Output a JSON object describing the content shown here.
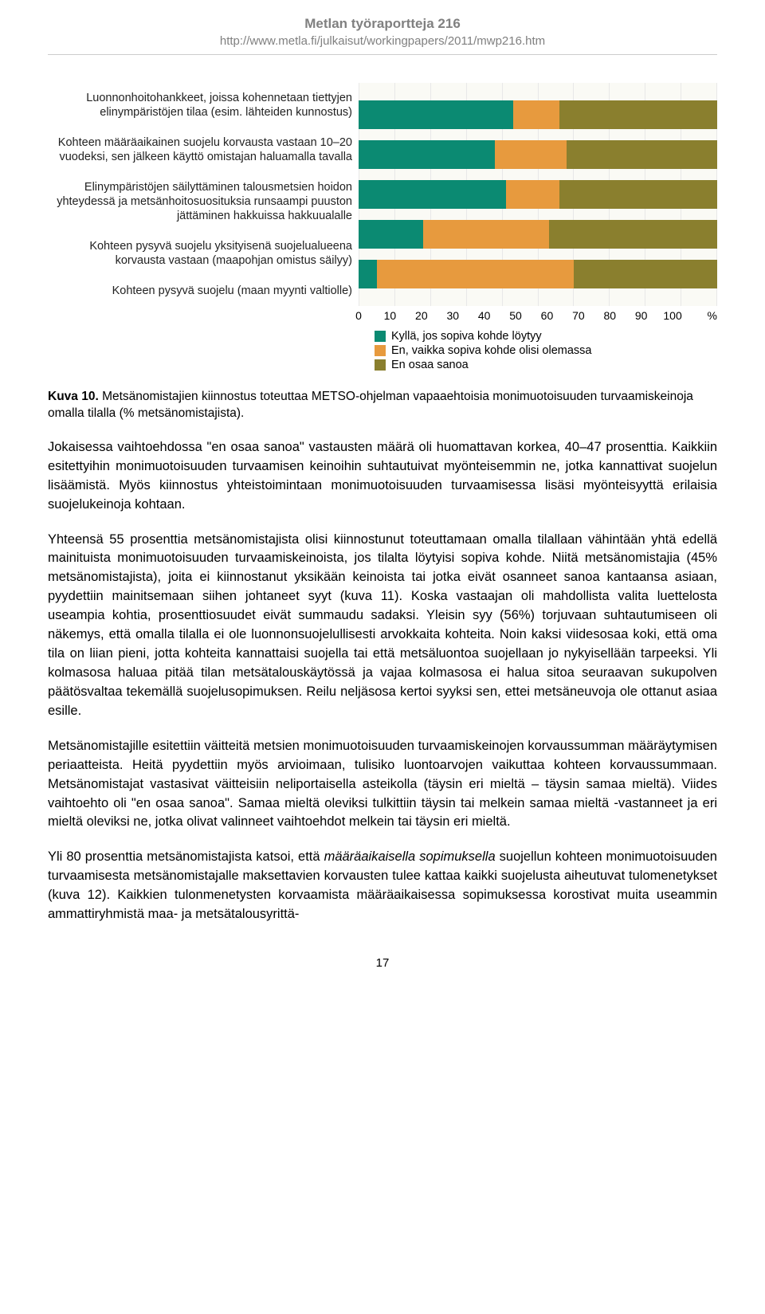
{
  "header": {
    "title": "Metlan työraportteja 216",
    "url": "http://www.metla.fi/julkaisut/workingpapers/2011/mwp216.htm"
  },
  "chart": {
    "type": "stacked-horizontal-bar",
    "plot_bg": "#fafaf5",
    "grid_color": "#e8e8e8",
    "xlim": [
      0,
      100
    ],
    "xtick_step": 10,
    "axis_unit": "%",
    "colors": {
      "yes": "#0b8a72",
      "no": "#e79a3e",
      "dunno": "#8a7f2e"
    },
    "categories": [
      {
        "label": "Luonnonhoitohankkeet, joissa kohennetaan tiettyjen elinympäristöjen tilaa (esim. lähteiden kunnostus)",
        "values": [
          43,
          13,
          44
        ]
      },
      {
        "label": "Kohteen määräaikainen suojelu korvausta vastaan 10–20 vuodeksi, sen jälkeen käyttö omistajan haluamalla tavalla",
        "values": [
          38,
          20,
          42
        ]
      },
      {
        "label": "Elinympäristöjen säilyttäminen talousmetsien hoidon yhteydessä ja metsänhoitosuosituksia runsaampi puuston jättäminen hakkuissa hakkuualalle",
        "values": [
          41,
          15,
          44
        ]
      },
      {
        "label": "Kohteen pysyvä suojelu yksityisenä suojelualueena korvausta vastaan (maapohjan omistus säilyy)",
        "values": [
          18,
          35,
          47
        ]
      },
      {
        "label": "Kohteen pysyvä suojelu (maan myynti valtiolle)",
        "values": [
          5,
          55,
          40
        ]
      }
    ],
    "legend": [
      {
        "key": "yes",
        "label": "Kyllä, jos sopiva kohde löytyy"
      },
      {
        "key": "no",
        "label": "En, vaikka sopiva kohde olisi olemassa"
      },
      {
        "key": "dunno",
        "label": "En osaa sanoa"
      }
    ],
    "label_fontsize": 14.5,
    "axis_fontsize": 14
  },
  "caption": {
    "lead": "Kuva 10.",
    "text": " Metsänomistajien kiinnostus toteuttaa METSO-ohjelman vapaaehtoisia monimuotoisuuden turvaamiskeinoja omalla tilalla (% metsänomistajista)."
  },
  "paragraphs": {
    "p1": "Jokaisessa vaihtoehdossa \"en osaa sanoa\" vastausten määrä oli huomattavan korkea, 40–47 pro­senttia. Kaikkiin esitettyihin monimuotoisuuden turvaamisen keinoihin suhtautuivat myöntei­semmin ne, jotka kannattivat suojelun lisäämistä. Myös kiinnostus yhteistoimintaan monimuotoi­suuden turvaamisessa lisäsi myönteisyyttä erilaisia suojelukeinoja kohtaan.",
    "p2": "Yhteensä 55 prosenttia metsänomistajista olisi kiinnostunut toteuttamaan omalla tilallaan vähin­tään yhtä edellä mainituista monimuotoisuuden turvaamiskeinoista, jos tilalta löytyisi sopiva koh­de. Niitä metsänomistajia (45% metsänomistajista), joita ei kiinnostanut yksikään keinoista tai jotka eivät osanneet sanoa kantaansa asiaan, pyydettiin mainitsemaan siihen johtaneet syyt (kuva 11). Koska vastaajan oli mahdollista valita luettelosta useampia kohtia, prosenttiosuudet eivät summaudu sadaksi. Yleisin syy (56%) torjuvaan suhtautumiseen oli näkemys, että omalla tilalla ei ole luonnonsuojelullisesti arvokkaita kohteita. Noin kaksi viidesosaa koki, että oma tila on liian pieni, jotta kohteita kannattaisi suojella tai että metsäluontoa suojellaan jo nykyisellään tarpeeksi. Yli kolmasosa haluaa pitää tilan metsätalouskäytössä ja vajaa kolmasosa ei halua sitoa seuraavan sukupolven päätösvaltaa tekemällä suojelusopimuksen. Reilu neljäsosa kertoi syyksi sen, ettei metsäneuvoja ole ottanut asiaa esille.",
    "p3": "Metsänomistajille esitettiin väitteitä metsien monimuotoisuuden turvaamiskeinojen korvaussum­man määräytymisen periaatteista. Heitä pyydettiin myös arvioimaan, tulisiko luontoarvojen vai­kuttaa kohteen korvaussummaan. Metsänomistajat vastasivat väitteisiin neliportaisella asteikolla (täysin eri mieltä – täysin samaa mieltä). Viides vaihtoehto oli \"en osaa sanoa\". Samaa mieltä ole­viksi tulkittiin täysin tai melkein samaa mieltä -vastanneet ja eri mieltä oleviksi ne, jotka olivat valinneet vaihtoehdot melkein tai täysin eri mieltä.",
    "p4_pre": "Yli 80 prosenttia metsänomistajista katsoi, että ",
    "p4_em": "määräaikaisella sopimuksella",
    "p4_post": " suojellun kohteen monimuotoisuuden turvaamisesta metsänomistajalle maksettavien korvausten tulee kattaa kaikki suojelusta aiheutuvat tulomenetykset (kuva 12). Kaikkien tulonmenetysten korvaamista määrä­aikaisessa sopimuksessa korostivat muita useammin ammattiryhmistä maa- ja metsätalousyrittä-"
  },
  "page_number": "17"
}
